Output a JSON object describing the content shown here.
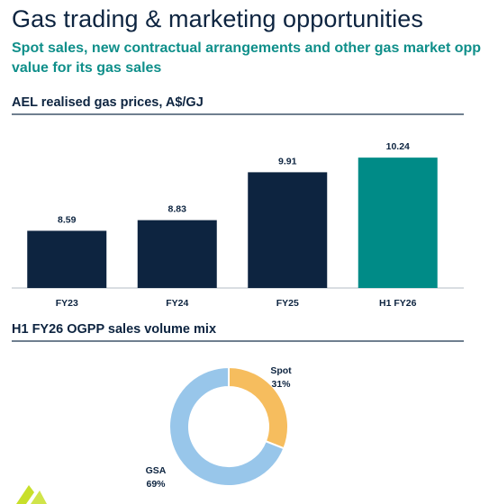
{
  "header": {
    "title": "Gas trading & marketing opportunities",
    "subtitle_line1": "Spot sales, new contractual arrangements and other gas market opp",
    "subtitle_line2": "value for its gas sales"
  },
  "colors": {
    "navy": "#0d2440",
    "teal": "#008b87",
    "spot_orange": "#f6bd5e",
    "gsa_blue": "#98c6ea"
  },
  "chart_data": [
    {
      "type": "bar",
      "title": "AEL realised gas prices, A$/GJ",
      "categories": [
        "FY23",
        "FY24",
        "FY25",
        "H1 FY26"
      ],
      "values": [
        8.59,
        8.83,
        9.91,
        10.24
      ],
      "value_labels": [
        "8.59",
        "8.83",
        "9.91",
        "10.24"
      ],
      "bar_colors": [
        "#0d2440",
        "#0d2440",
        "#0d2440",
        "#008b87"
      ],
      "ylim": [
        7.3,
        10.75
      ],
      "grid": false,
      "xlabel": "",
      "ylabel": ""
    },
    {
      "type": "pie",
      "style": "donut",
      "title": "H1 FY26 OGPP sales volume mix",
      "slices": [
        {
          "label": "Spot",
          "value": 31,
          "value_label": "31%",
          "color": "#f6bd5e"
        },
        {
          "label": "GSA",
          "value": 69,
          "value_label": "69%",
          "color": "#98c6ea"
        }
      ]
    }
  ]
}
